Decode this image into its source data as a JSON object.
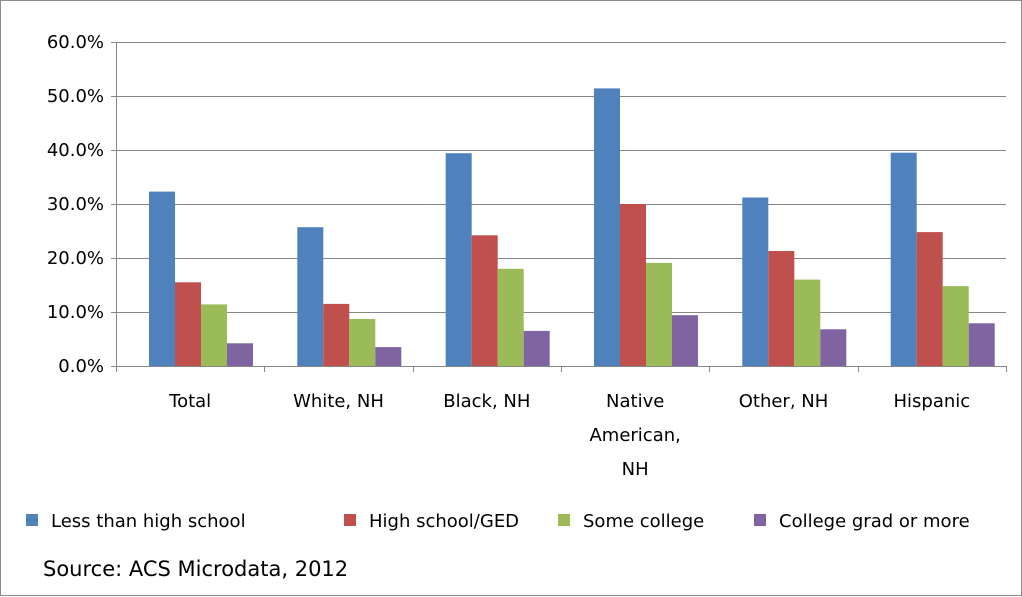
{
  "chart_data": {
    "type": "bar",
    "categories": [
      "Total",
      "White, NH",
      "Black, NH",
      "Native American, NH",
      "Other, NH",
      "Hispanic"
    ],
    "category_label_lines": [
      [
        "Total"
      ],
      [
        "White, NH"
      ],
      [
        "Black, NH"
      ],
      [
        "Native",
        "American,",
        "NH"
      ],
      [
        "Other, NH"
      ],
      [
        "Hispanic"
      ]
    ],
    "series": [
      {
        "name": "Less than high school",
        "color": "#4F81BD",
        "values": [
          32.3,
          25.7,
          39.4,
          51.4,
          31.2,
          39.5
        ]
      },
      {
        "name": "High school/GED",
        "color": "#C0504D",
        "values": [
          15.5,
          11.5,
          24.2,
          30.0,
          21.3,
          24.8
        ]
      },
      {
        "name": "Some college",
        "color": "#9BBB59",
        "values": [
          11.4,
          8.7,
          18.0,
          19.1,
          16.0,
          14.8
        ]
      },
      {
        "name": "College grad or more",
        "color": "#8064A2",
        "values": [
          4.2,
          3.5,
          6.5,
          9.4,
          6.8,
          7.9
        ]
      }
    ],
    "ylim": [
      0,
      60
    ],
    "yticks": [
      0,
      10,
      20,
      30,
      40,
      50,
      60
    ],
    "ytick_labels": [
      "0.0%",
      "10.0%",
      "20.0%",
      "30.0%",
      "40.0%",
      "50.0%",
      "60.0%"
    ],
    "title": "",
    "xlabel": "",
    "ylabel": "",
    "grid": true,
    "legend_position": "bottom",
    "gridline_color": "#868686"
  },
  "source_note": "Source: ACS Microdata, 2012"
}
